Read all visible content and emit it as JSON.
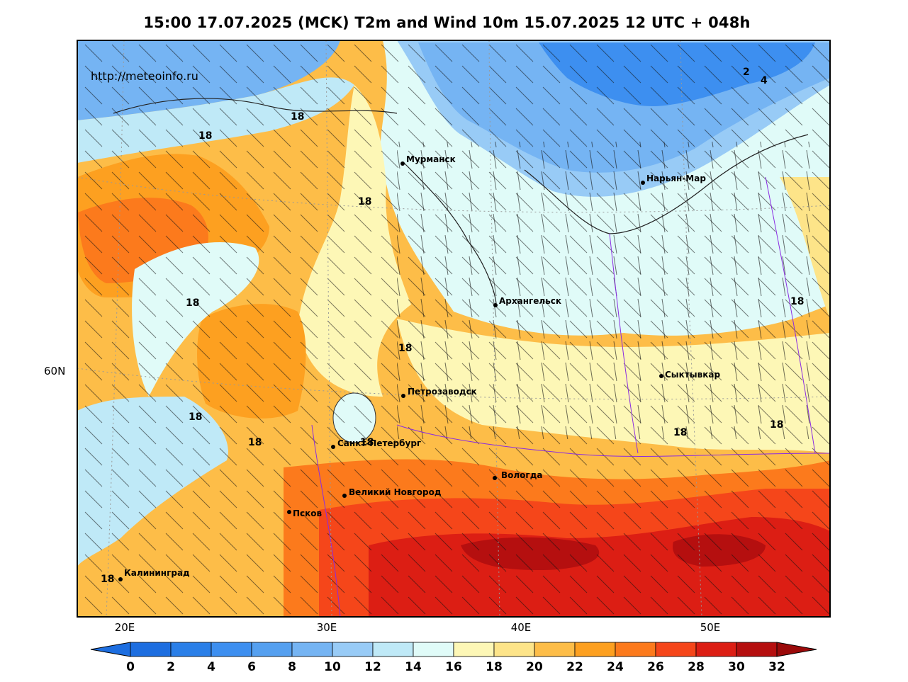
{
  "title": "15:00 17.07.2025 (MCK) T2m and Wind 10m 15.07.2025 12 UTC + 048h",
  "watermark": "http://meteoinfo.ru",
  "cities": [
    {
      "name": "Мурманск"
    },
    {
      "name": "Нарьян-Мар"
    },
    {
      "name": "Архангельск"
    },
    {
      "name": "Сыктывкар"
    },
    {
      "name": "Петрозаводск"
    },
    {
      "name": "Санкт-Петербург"
    },
    {
      "name": "Вологда"
    },
    {
      "name": "Великий Новгород"
    },
    {
      "name": "Псков"
    },
    {
      "name": "Калининград"
    }
  ],
  "contour_labels": [
    "18",
    "18",
    "18",
    "18",
    "18",
    "18",
    "18",
    "18",
    "18",
    "18",
    "18",
    "18",
    "2",
    "4"
  ],
  "lon_labels": [
    "20E",
    "30E",
    "40E",
    "50E"
  ],
  "lat_labels": [
    "60N"
  ],
  "colorbar": {
    "ticks": [
      "0",
      "2",
      "4",
      "6",
      "8",
      "10",
      "12",
      "14",
      "16",
      "18",
      "20",
      "22",
      "24",
      "26",
      "28",
      "30",
      "32"
    ],
    "colors": [
      "#1d6ee0",
      "#2a7fe8",
      "#3d8ff0",
      "#55a0f0",
      "#75b4f3",
      "#98cbf6",
      "#bfe9f7",
      "#e0fbf8",
      "#fdf7b6",
      "#fde489",
      "#fdbd48",
      "#fda020",
      "#fc7a1c",
      "#f5461a",
      "#dc1e14",
      "#b50f0f"
    ],
    "under_color": "#1d6ee0",
    "over_color": "#9b0a0a"
  }
}
